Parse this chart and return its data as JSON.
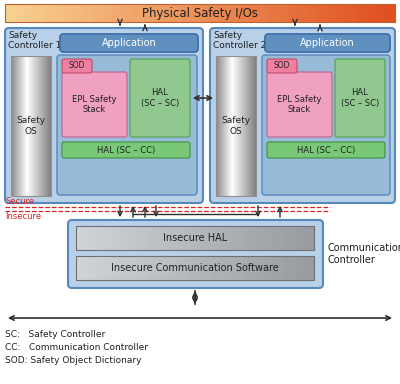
{
  "title": "Physical Safety I/Os",
  "sc1_label": "Safety\nController 1",
  "sc2_label": "Safety\nController 2",
  "comm_controller_label": "Communication\nController",
  "secure_label": "Secure",
  "insecure_label": "Insecure",
  "legend": [
    "SC:   Safety Controller",
    "CC:   Communication Controller",
    "SOD: Safety Object Dictionary"
  ],
  "colors": {
    "sc_box_bg": "#b8d0e8",
    "sc_box_border": "#5588bb",
    "inner_box_bg": "#98bcd8",
    "inner_box_border": "#5588bb",
    "app_blue_bg": "#6090c0",
    "app_blue_border": "#3060a0",
    "safety_os_top": "#e8e8e8",
    "safety_os_bot": "#909090",
    "sod_bg": "#f080a0",
    "sod_border": "#c04060",
    "epl_bg": "#f0a0c0",
    "epl_border": "#c06090",
    "hal_sc_sc_bg": "#90c890",
    "hal_sc_sc_border": "#50a050",
    "hal_sc_cc_bg": "#78c878",
    "hal_sc_cc_border": "#409040",
    "comm_box_bg": "#b8d0e8",
    "comm_box_border": "#5588bb",
    "insecure_hal_bg": "#b4b8bc",
    "insecure_hal_border": "#808080",
    "insecure_comm_bg": "#b4b8bc",
    "insecure_comm_border": "#808080",
    "arrow_color": "#303030",
    "red_line": "#dd2222",
    "text_dark": "#202020",
    "white": "#ffffff"
  }
}
